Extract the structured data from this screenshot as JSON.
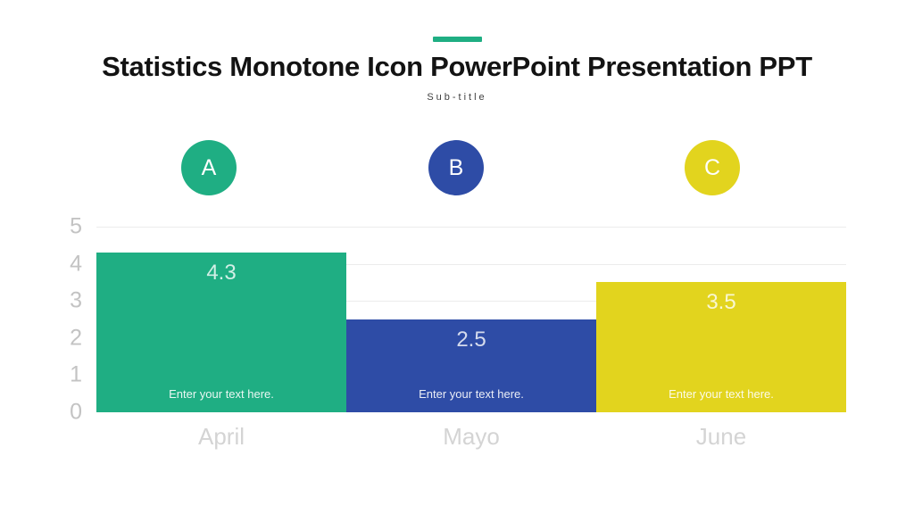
{
  "slide": {
    "title": "Statistics Monotone Icon PowerPoint Presentation PPT",
    "subtitle": "Sub-title",
    "accent_color": "#1FAE83"
  },
  "legend": {
    "items": [
      {
        "label": "A",
        "color": "#1FAE83"
      },
      {
        "label": "B",
        "color": "#2E4CA6"
      },
      {
        "label": "C",
        "color": "#E2D41E"
      }
    ]
  },
  "chart_data": {
    "type": "bar",
    "title": "",
    "categories": [
      "April",
      "Mayo",
      "June"
    ],
    "values": [
      4.3,
      2.5,
      3.5
    ],
    "value_labels": [
      "4.3",
      "2.5",
      "3.5"
    ],
    "bar_texts": [
      "Enter your text here.",
      "Enter your text here.",
      "Enter your text here."
    ],
    "bar_colors": [
      "#1FAE83",
      "#2E4CA6",
      "#E2D41E"
    ],
    "xlabel": "",
    "ylabel": "",
    "ylim": [
      0,
      5
    ],
    "yticks": [
      0,
      1,
      2,
      3,
      4,
      5
    ],
    "grid": true,
    "legend_position": "none"
  }
}
